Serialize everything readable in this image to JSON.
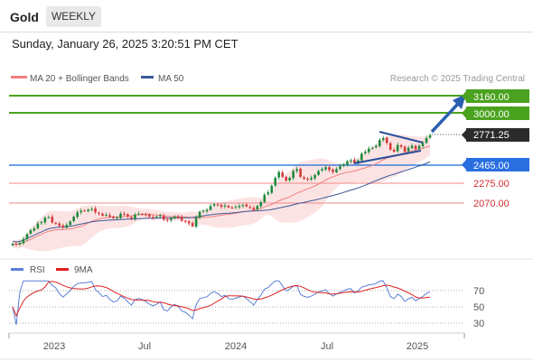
{
  "header": {
    "title": "Gold",
    "timeframe": "WEEKLY"
  },
  "datetime": "Sunday, January 26, 2025 3:20:51 PM CET",
  "legend": {
    "ma20": "MA 20 + Bollinger Bands",
    "ma50": "MA 50",
    "source": "Research © 2025 Trading Central",
    "ma20_color": "#f08080",
    "ma50_color": "#3b5998"
  },
  "rsi_legend": {
    "rsi": "RSI",
    "ma9": "9MA",
    "rsi_color": "#5b7fd6",
    "ma9_color": "#e02020"
  },
  "levels": [
    {
      "value": "3160.00",
      "kind": "green_box"
    },
    {
      "value": "3000.00",
      "kind": "green_box"
    },
    {
      "value": "2771.25",
      "kind": "price_box"
    },
    {
      "value": "2465.00",
      "kind": "blue_box"
    },
    {
      "value": "2275.00",
      "kind": "red_text"
    },
    {
      "value": "2070.00",
      "kind": "red_text"
    }
  ],
  "rsi_ticks": [
    "70",
    "50",
    "30"
  ],
  "x_ticks": [
    "2023",
    "Jul",
    "2024",
    "Jul",
    "2025"
  ],
  "colors": {
    "up": "#1f8a3a",
    "down": "#d43a3a",
    "green_level": "#4aa21e",
    "blue_level": "#3a7fe0",
    "arrow": "#2a5fb0"
  },
  "chart_data": {
    "type": "candlestick",
    "title": "Gold WEEKLY",
    "timeframe": "weekly",
    "x_range": [
      "2022-10",
      "2025-01"
    ],
    "y_range": [
      1600,
      3200
    ],
    "last_price": 2771.25,
    "resistance_levels": [
      3000.0,
      3160.0
    ],
    "pivot_level": 2465.0,
    "support_levels": [
      2275.0,
      2070.0
    ],
    "indicators": [
      "MA 20 + Bollinger Bands",
      "MA 50",
      "RSI",
      "9MA"
    ],
    "rsi_levels": [
      70,
      50,
      30
    ],
    "close_series": [
      1650,
      1640,
      1660,
      1700,
      1750,
      1790,
      1810,
      1860,
      1875,
      1920,
      1925,
      1870,
      1860,
      1835,
      1820,
      1845,
      1880,
      1930,
      1975,
      1990,
      1990,
      2000,
      2010,
      1975,
      1960,
      1940,
      1950,
      1930,
      1915,
      1920,
      1960,
      1950,
      1930,
      1910,
      1950,
      1960,
      1955,
      1945,
      1930,
      1920,
      1930,
      1945,
      1900,
      1890,
      1915,
      1930,
      1920,
      1890,
      1880,
      1860,
      1830,
      1920,
      1980,
      1990,
      2000,
      2040,
      2060,
      2050,
      2030,
      2045,
      2025,
      2020,
      2030,
      2040,
      2050,
      2035,
      2020,
      2000,
      2040,
      2080,
      2155,
      2180,
      2250,
      2330,
      2390,
      2340,
      2300,
      2330,
      2400,
      2420,
      2340,
      2320,
      2310,
      2330,
      2360,
      2400,
      2420,
      2440,
      2410,
      2390,
      2420,
      2450,
      2470,
      2500,
      2510,
      2480,
      2510,
      2580,
      2600,
      2630,
      2640,
      2660,
      2720,
      2740,
      2690,
      2620,
      2600,
      2670,
      2650,
      2600,
      2640,
      2660,
      2625,
      2660,
      2690,
      2740,
      2771
    ]
  }
}
